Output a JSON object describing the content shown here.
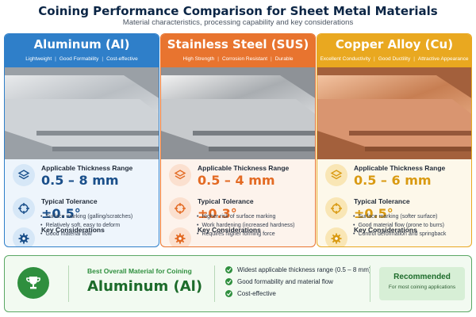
{
  "header": {
    "title": "Coining Performance Comparison for Sheet Metal Materials",
    "subtitle": "Material characteristics, processing capability and key considerations"
  },
  "labels": {
    "thickness": "Applicable Thickness Range",
    "tolerance": "Typical Tolerance",
    "considerations": "Key Considerations"
  },
  "cards": [
    {
      "name": "Aluminum (Al)",
      "tags": [
        "Lightweight",
        "Good Formability",
        "Cost-effective"
      ],
      "thickness": "0.5 – 8 mm",
      "tolerance": "±0.5°",
      "considerations": [
        "Surface marking (galling/scratches)",
        "Relatively soft, easy to deform",
        "Good material flow"
      ],
      "accent": "#2f7fc9",
      "value_color": "#1a4f8a",
      "bg": "#eef5fc",
      "icon_bg": "#d6e7f7"
    },
    {
      "name": "Stainless Steel (SUS)",
      "tags": [
        "High Strength",
        "Corrosion Resistant",
        "Durable"
      ],
      "thickness": "0.5 – 4 mm",
      "tolerance": "±0.3°",
      "considerations": [
        "Higher risk of surface marking",
        "Work hardening (increased hardness)",
        "Requires higher forming force"
      ],
      "accent": "#e8742f",
      "value_color": "#e36a23",
      "bg": "#fdf3ec",
      "icon_bg": "#fbe0cf"
    },
    {
      "name": "Copper Alloy (Cu)",
      "tags": [
        "Excellent Conductivity",
        "Good Ductility",
        "Attractive Appearance"
      ],
      "thickness": "0.5 – 6 mm",
      "tolerance": "±0.5°",
      "considerations": [
        "Surface marking (softer surface)",
        "Good material flow (prone to burrs)",
        "Control deformation and springback"
      ],
      "accent": "#e9a820",
      "value_color": "#d99a12",
      "bg": "#fdf8ea",
      "icon_bg": "#f9e6b5"
    }
  ],
  "icons": [
    "layers-icon",
    "crosshair-icon",
    "gear-icon",
    "trophy-icon",
    "check-icon"
  ],
  "summary": {
    "label": "Best Overall Material for Coining",
    "value": "Aluminum (Al)",
    "points": [
      "Widest applicable thickness range (0.5 – 8 mm)",
      "Good formability and material flow",
      "Cost-effective"
    ],
    "rec_title": "Recommended",
    "rec_sub": "For most coining applications"
  }
}
